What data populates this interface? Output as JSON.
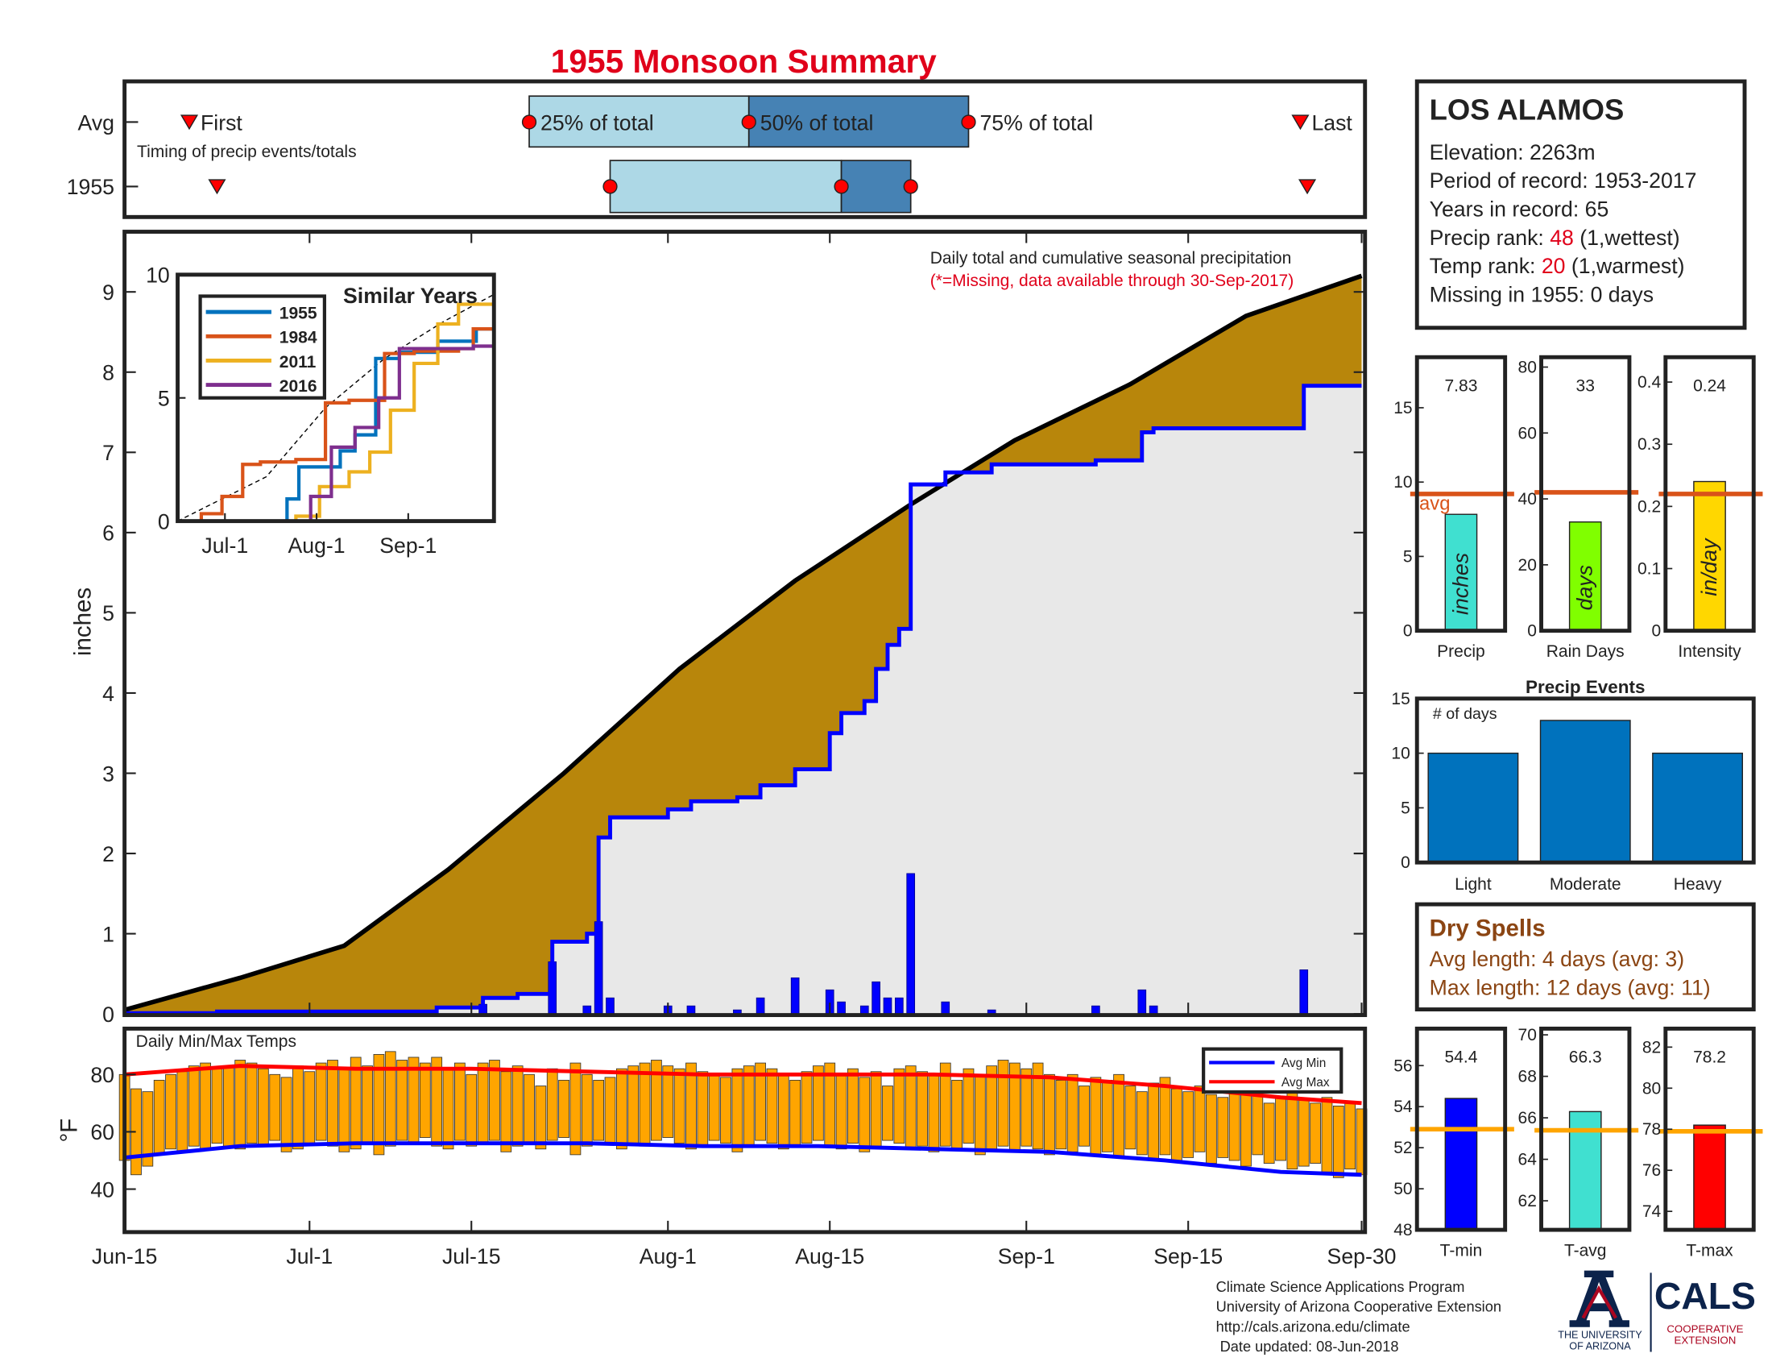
{
  "title": "1955 Monsoon Summary",
  "chart_data": [
    {
      "type": "timing",
      "subtitle": "Timing of precip events/totals",
      "xlim": [
        0,
        107
      ],
      "labels": {
        "first": "First",
        "q25": "25% of total",
        "q50": "50% of total",
        "q75": "75% of total",
        "last": "Last"
      },
      "colors": {
        "lower": "#add8e6",
        "upper": "#4682b4",
        "marker": "#ff0000"
      },
      "rows": [
        {
          "name": "Avg",
          "first": 5.6,
          "q25": 35,
          "q50": 54,
          "q75": 73,
          "last": 101.7
        },
        {
          "name": "1955",
          "first": 8,
          "q25": 42,
          "q50": 62,
          "q75": 68,
          "last": 102.3
        }
      ]
    },
    {
      "type": "cumulative",
      "ylabel": "inches",
      "annotation": "Daily total and cumulative seasonal precipitation",
      "note": "(*=Missing, data available through 30-Sep-2017)",
      "xlim": [
        0,
        107
      ],
      "ylim": [
        0,
        9.75
      ],
      "yticks": [
        0,
        1,
        2,
        3,
        4,
        5,
        6,
        7,
        8,
        9
      ],
      "average": {
        "color": "#000000",
        "fill": "#b8860b",
        "x": [
          0,
          10,
          19,
          28,
          38,
          48,
          58,
          68,
          77,
          87,
          97,
          107
        ],
        "values": [
          0.05,
          0.45,
          0.85,
          1.8,
          3.0,
          4.3,
          5.4,
          6.35,
          7.15,
          7.85,
          8.7,
          9.2
        ]
      },
      "observed": {
        "color": "#0000ff",
        "fill": "#e8e8e8",
        "x": [
          0,
          8,
          27,
          31,
          34,
          37,
          40,
          41,
          42,
          47,
          49,
          53,
          55,
          58,
          61,
          62,
          64,
          65,
          66,
          67,
          68,
          71,
          75,
          84,
          88,
          89,
          102
        ],
        "values": [
          0.01,
          0.03,
          0.08,
          0.2,
          0.25,
          0.9,
          1.0,
          2.2,
          2.45,
          2.55,
          2.65,
          2.7,
          2.85,
          3.05,
          3.5,
          3.75,
          3.9,
          4.3,
          4.6,
          4.8,
          6.6,
          6.75,
          6.85,
          6.9,
          7.25,
          7.3,
          7.83
        ]
      },
      "daily": {
        "color": "#0000ff",
        "x": [
          31,
          37,
          40,
          41,
          42,
          47,
          49,
          53,
          55,
          58,
          61,
          62,
          64,
          65,
          66,
          67,
          68,
          71,
          75,
          84,
          88,
          89,
          102
        ],
        "values": [
          0.12,
          0.65,
          0.1,
          1.15,
          0.2,
          0.1,
          0.1,
          0.05,
          0.2,
          0.45,
          0.3,
          0.15,
          0.1,
          0.4,
          0.2,
          0.2,
          1.75,
          0.15,
          0.05,
          0.1,
          0.3,
          0.1,
          0.55
        ]
      }
    },
    {
      "type": "line",
      "title": "Similar Years",
      "xlim": [
        0,
        107
      ],
      "ylim": [
        0,
        10
      ],
      "yticks": [
        0,
        5,
        10
      ],
      "xticks": [
        {
          "value": 16,
          "label": "Jul-1"
        },
        {
          "value": 47,
          "label": "Aug-1"
        },
        {
          "value": 78,
          "label": "Sep-1"
        }
      ],
      "average": {
        "color": "#000000",
        "x": [
          0,
          30,
          50,
          70,
          90,
          107
        ],
        "values": [
          0,
          1.8,
          4.6,
          6.6,
          8.1,
          9.2
        ]
      },
      "series": [
        {
          "name": "1955",
          "color": "#0072bd",
          "x": [
            0,
            37,
            41,
            55,
            60,
            67,
            75,
            88,
            101
          ],
          "values": [
            0,
            0.9,
            2.2,
            2.85,
            3.5,
            6.6,
            6.85,
            7.3,
            7.8
          ]
        },
        {
          "name": "1984",
          "color": "#d95319",
          "x": [
            0,
            8,
            15,
            22,
            28,
            40,
            50,
            58,
            70,
            80,
            95,
            100,
            107
          ],
          "values": [
            0,
            0.3,
            1,
            2.3,
            2.4,
            2.5,
            4.8,
            4.9,
            6.8,
            6.9,
            7.0,
            7.8,
            8.7
          ]
        },
        {
          "name": "2011",
          "color": "#edb120",
          "x": [
            0,
            30,
            40,
            48,
            58,
            65,
            72,
            80,
            88,
            95,
            107
          ],
          "values": [
            0,
            0,
            0.2,
            1.4,
            2.0,
            2.8,
            4.5,
            6.4,
            8.0,
            8.8,
            8.9
          ]
        },
        {
          "name": "2016",
          "color": "#7e2f8e",
          "x": [
            0,
            40,
            45,
            52,
            60,
            68,
            75,
            90,
            100,
            107
          ],
          "values": [
            0,
            0,
            1.0,
            3.0,
            3.8,
            5.0,
            7.0,
            7.0,
            7.1,
            7.3
          ]
        }
      ]
    },
    {
      "type": "range-bar",
      "title": "Daily Min/Max Temps",
      "ylabel": "°F",
      "xlim": [
        0,
        107
      ],
      "ylim": [
        25,
        96
      ],
      "yticks": [
        40,
        60,
        80
      ],
      "color": "#ffa500",
      "xticks": [
        {
          "value": 0,
          "label": "Jun-15"
        },
        {
          "value": 16,
          "label": "Jul-1"
        },
        {
          "value": 30,
          "label": "Jul-15"
        },
        {
          "value": 47,
          "label": "Aug-1"
        },
        {
          "value": 61,
          "label": "Aug-15"
        },
        {
          "value": 78,
          "label": "Sep-1"
        },
        {
          "value": 92,
          "label": "Sep-15"
        },
        {
          "value": 107,
          "label": "Sep-30"
        }
      ],
      "x": [
        0,
        1,
        2,
        3,
        4,
        5,
        6,
        7,
        8,
        9,
        10,
        11,
        12,
        13,
        14,
        15,
        16,
        17,
        18,
        19,
        20,
        21,
        22,
        23,
        24,
        25,
        26,
        27,
        28,
        29,
        30,
        31,
        32,
        33,
        34,
        35,
        36,
        37,
        38,
        39,
        40,
        41,
        42,
        43,
        44,
        45,
        46,
        47,
        48,
        49,
        50,
        51,
        52,
        53,
        54,
        55,
        56,
        57,
        58,
        59,
        60,
        61,
        62,
        63,
        64,
        65,
        66,
        67,
        68,
        69,
        70,
        71,
        72,
        73,
        74,
        75,
        76,
        77,
        78,
        79,
        80,
        81,
        82,
        83,
        84,
        85,
        86,
        87,
        88,
        89,
        90,
        91,
        92,
        93,
        94,
        95,
        96,
        97,
        98,
        99,
        100,
        101,
        102,
        103,
        104,
        105,
        106,
        107
      ],
      "max": [
        80,
        75,
        74,
        78,
        80,
        81,
        83,
        84,
        82,
        83,
        85,
        84,
        82,
        80,
        79,
        83,
        81,
        84,
        85,
        82,
        86,
        83,
        87,
        88,
        85,
        86,
        84,
        86,
        82,
        84,
        80,
        84,
        85,
        81,
        83,
        80,
        76,
        82,
        78,
        84,
        80,
        78,
        79,
        82,
        83,
        84,
        85,
        83,
        82,
        84,
        81,
        80,
        79,
        82,
        83,
        84,
        82,
        80,
        78,
        81,
        83,
        84,
        80,
        82,
        79,
        81,
        76,
        82,
        83,
        81,
        80,
        84,
        78,
        82,
        80,
        83,
        85,
        84,
        82,
        84,
        80,
        78,
        80,
        76,
        79,
        78,
        80,
        76,
        74,
        77,
        79,
        75,
        74,
        76,
        73,
        72,
        76,
        74,
        73,
        70,
        72,
        74,
        71,
        70,
        72,
        69,
        70,
        68
      ],
      "min": [
        50,
        45,
        48,
        52,
        54,
        53,
        55,
        54,
        56,
        55,
        54,
        56,
        55,
        57,
        53,
        54,
        56,
        57,
        55,
        53,
        54,
        56,
        52,
        55,
        57,
        56,
        58,
        55,
        54,
        57,
        55,
        56,
        57,
        53,
        55,
        56,
        54,
        57,
        58,
        52,
        55,
        57,
        56,
        54,
        56,
        55,
        57,
        58,
        56,
        54,
        55,
        57,
        56,
        53,
        55,
        57,
        56,
        54,
        55,
        56,
        57,
        55,
        54,
        56,
        53,
        55,
        57,
        56,
        54,
        55,
        53,
        55,
        54,
        56,
        52,
        54,
        55,
        53,
        55,
        54,
        52,
        54,
        53,
        55,
        52,
        53,
        51,
        54,
        52,
        50,
        52,
        50,
        51,
        53,
        49,
        51,
        50,
        48,
        52,
        49,
        50,
        47,
        48,
        49,
        46,
        44,
        47,
        45
      ],
      "series": [
        {
          "name": "Avg Min",
          "color": "#0000ff",
          "x": [
            0,
            10,
            20,
            30,
            40,
            50,
            60,
            70,
            80,
            90,
            100,
            107
          ],
          "values": [
            51,
            55,
            56,
            56,
            56,
            55,
            55,
            54,
            53,
            50,
            46,
            45
          ]
        },
        {
          "name": "Avg Max",
          "color": "#ff0000",
          "x": [
            0,
            10,
            20,
            30,
            40,
            50,
            60,
            70,
            80,
            90,
            100,
            107
          ],
          "values": [
            80,
            83,
            82,
            82,
            81,
            80,
            80,
            80,
            79,
            76,
            72,
            70
          ]
        }
      ]
    },
    {
      "type": "stat-bar",
      "categories": [
        "Precip"
      ],
      "values": [
        7.83
      ],
      "color": "#40e0d0",
      "bar_label": "inches",
      "avg": 9.2,
      "avg_label": "avg",
      "avg_color": "#d95319",
      "ylim": [
        0,
        18.4
      ],
      "yticks": [
        0,
        5,
        10,
        15
      ]
    },
    {
      "type": "stat-bar",
      "categories": [
        "Rain Days"
      ],
      "values": [
        33
      ],
      "color": "#80ff00",
      "bar_label": "days",
      "avg": 42,
      "avg_color": "#d95319",
      "ylim": [
        0,
        83
      ],
      "yticks": [
        0,
        20,
        40,
        60,
        80
      ]
    },
    {
      "type": "stat-bar",
      "categories": [
        "Intensity"
      ],
      "values": [
        0.24
      ],
      "color": "#ffd700",
      "bar_label": "in/day",
      "avg": 0.22,
      "avg_color": "#d95319",
      "ylim": [
        0,
        0.44
      ],
      "yticks": [
        0,
        0.1,
        0.2,
        0.3,
        0.4
      ]
    },
    {
      "type": "bar",
      "title": "Precip Events",
      "ylabel": "# of days",
      "categories": [
        "Light",
        "Moderate",
        "Heavy"
      ],
      "values": [
        10,
        13,
        10
      ],
      "color": "#0072bd",
      "ylim": [
        0,
        15
      ],
      "yticks": [
        0,
        5,
        10,
        15
      ]
    },
    {
      "type": "stat-bar",
      "categories": [
        "T-min"
      ],
      "values": [
        54.4
      ],
      "color": "#0000ff",
      "avg": 52.9,
      "avg_color": "#ffa500",
      "ylim": [
        48,
        57.8
      ],
      "yticks": [
        48,
        50,
        52,
        54,
        56
      ]
    },
    {
      "type": "stat-bar",
      "categories": [
        "T-avg"
      ],
      "values": [
        66.3
      ],
      "color": "#40e0d0",
      "avg": 65.4,
      "avg_color": "#ffa500",
      "ylim": [
        60.6,
        70.3
      ],
      "yticks": [
        62,
        64,
        66,
        68,
        70
      ]
    },
    {
      "type": "stat-bar",
      "categories": [
        "T-max"
      ],
      "values": [
        78.2
      ],
      "color": "#ff0000",
      "avg": 77.9,
      "avg_color": "#ffa500",
      "ylim": [
        73.1,
        82.9
      ],
      "yticks": [
        74,
        76,
        78,
        80,
        82
      ]
    }
  ],
  "station": {
    "name": "LOS ALAMOS",
    "lines": [
      {
        "text": "Elevation: 2263m"
      },
      {
        "text": "Period of record: 1953-2017"
      },
      {
        "text": "Years in record: 65"
      },
      {
        "text": "Precip rank: ",
        "rank": 48,
        "rest": " (1,wettest)"
      },
      {
        "text": "Temp rank: ",
        "rank": 20,
        "rest": " (1,warmest)"
      },
      {
        "text": "Missing in 1955: 0 days"
      }
    ]
  },
  "dry_spells": {
    "title": "Dry Spells",
    "lines": [
      "Avg length: 4 days (avg: 3)",
      "Max length: 12 days (avg: 11)"
    ]
  },
  "footer": [
    "Climate Science Applications Program",
    "University of Arizona Cooperative Extension",
    "http://cals.arizona.edu/climate",
    " Date updated: 08-Jun-2018"
  ],
  "logo": {
    "university": [
      "THE UNIVERSITY",
      "OF ARIZONA"
    ],
    "cals": "CALS",
    "extension": [
      "COOPERATIVE",
      "EXTENSION"
    ]
  }
}
